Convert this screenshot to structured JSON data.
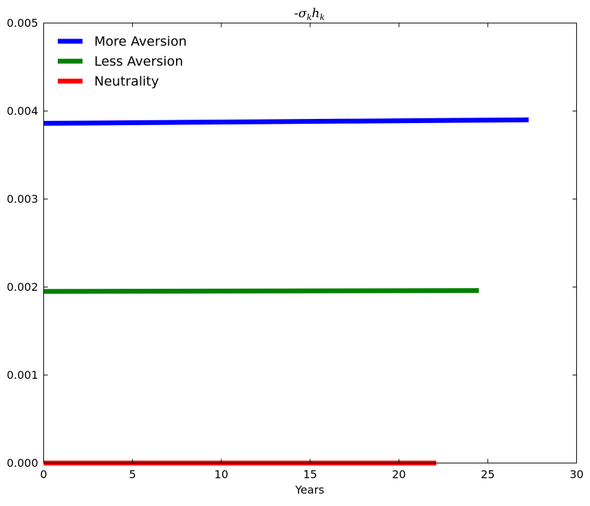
{
  "chart_data": {
    "type": "line",
    "title": "-σ",
    "title_sub1": "k",
    "title_main2": "h",
    "title_sub2": "k",
    "xlabel": "Years",
    "ylabel": "",
    "xlim": [
      0,
      30
    ],
    "ylim": [
      0,
      0.005
    ],
    "xticks": [
      0,
      5,
      10,
      15,
      20,
      25,
      30
    ],
    "xtick_labels": [
      "0",
      "5",
      "10",
      "15",
      "20",
      "25",
      "30"
    ],
    "yticks": [
      0,
      0.001,
      0.002,
      0.003,
      0.004,
      0.005
    ],
    "ytick_labels": [
      "0.000",
      "0.001",
      "0.002",
      "0.003",
      "0.004",
      "0.005"
    ],
    "legend_position": "top-left",
    "series": [
      {
        "name": "More Aversion",
        "color": "#0000ff",
        "x": [
          0,
          27.3
        ],
        "y": [
          0.00386,
          0.0039
        ]
      },
      {
        "name": "Less Aversion",
        "color": "#008000",
        "x": [
          0,
          24.5
        ],
        "y": [
          0.00195,
          0.00196
        ]
      },
      {
        "name": "Neutrality",
        "color": "#ff0000",
        "x": [
          0,
          22.1
        ],
        "y": [
          0.0,
          0.0
        ]
      }
    ]
  }
}
